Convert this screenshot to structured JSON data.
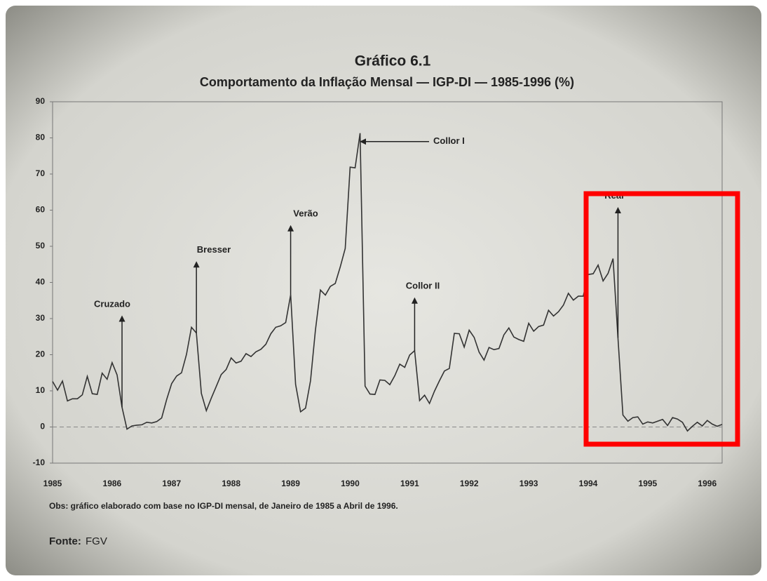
{
  "chart_data": {
    "type": "line",
    "title": "Gráfico 6.1",
    "subtitle": "Comportamento da Inflação Mensal — IGP-DI — 1985-1996 (%)",
    "note": "Obs: gráfico elaborado com base no IGP-DI mensal, de Janeiro de 1985 a Abril de 1996.",
    "source_label": "Fonte:",
    "source": "FGV",
    "annotations": [
      "Cruzado",
      "Bresser",
      "Verão",
      "Collor I",
      "Collor II",
      "Real"
    ],
    "categories": [
      "1985",
      null,
      null,
      null,
      null,
      null,
      null,
      null,
      null,
      null,
      null,
      null,
      "1986",
      null,
      null,
      null,
      null,
      null,
      null,
      null,
      null,
      null,
      null,
      null,
      "1987",
      null,
      null,
      null,
      null,
      null,
      null,
      null,
      null,
      null,
      null,
      null,
      "1988",
      null,
      null,
      null,
      null,
      null,
      null,
      null,
      null,
      null,
      null,
      null,
      "1989",
      null,
      null,
      null,
      null,
      null,
      null,
      null,
      null,
      null,
      null,
      null,
      "1990",
      null,
      null,
      null,
      null,
      null,
      null,
      null,
      null,
      null,
      null,
      null,
      "1991",
      null,
      null,
      null,
      null,
      null,
      null,
      null,
      null,
      null,
      null,
      null,
      "1992",
      null,
      null,
      null,
      null,
      null,
      null,
      null,
      null,
      null,
      null,
      null,
      "1993",
      null,
      null,
      null,
      null,
      null,
      null,
      null,
      null,
      null,
      null,
      null,
      "1994",
      null,
      null,
      null,
      null,
      null,
      null,
      null,
      null,
      null,
      null,
      null,
      "1995",
      null,
      null,
      null,
      null,
      null,
      null,
      null,
      null,
      null,
      null,
      null,
      "1996",
      null,
      null,
      null
    ],
    "values": [
      12.6,
      10.2,
      12.7,
      7.2,
      7.8,
      7.8,
      8.9,
      14.0,
      9.2,
      9.0,
      14.9,
      13.2,
      17.8,
      14.4,
      5.5,
      -0.6,
      0.3,
      0.5,
      0.6,
      1.3,
      1.1,
      1.5,
      2.5,
      7.6,
      12.0,
      14.1,
      15.0,
      20.1,
      27.6,
      26.0,
      9.3,
      4.5,
      8.0,
      11.2,
      14.5,
      15.9,
      19.1,
      17.7,
      18.2,
      20.3,
      19.5,
      20.8,
      21.5,
      22.9,
      25.8,
      27.6,
      28.0,
      28.9,
      36.6,
      11.8,
      4.2,
      5.2,
      12.8,
      26.8,
      37.9,
      36.5,
      38.9,
      39.7,
      44.3,
      49.4,
      71.9,
      71.7,
      81.3,
      11.3,
      9.1,
      9.0,
      13.0,
      12.9,
      11.7,
      14.2,
      17.4,
      16.5,
      19.9,
      21.1,
      7.3,
      8.8,
      6.5,
      9.9,
      12.8,
      15.5,
      16.2,
      25.9,
      25.8,
      22.1,
      26.8,
      24.8,
      20.7,
      18.5,
      22.0,
      21.4,
      21.7,
      25.5,
      27.4,
      24.9,
      24.2,
      23.7,
      28.7,
      26.5,
      27.8,
      28.2,
      32.3,
      30.7,
      31.9,
      33.7,
      37.0,
      35.1,
      36.2,
      36.2,
      42.2,
      42.4,
      44.8,
      40.4,
      42.5,
      46.6,
      24.7,
      3.3,
      1.6,
      2.6,
      2.8,
      0.8,
      1.4,
      1.1,
      1.6,
      2.1,
      0.4,
      2.6,
      2.2,
      1.3,
      -1.1,
      0.2,
      1.3,
      0.3,
      1.8,
      0.8,
      0.2,
      0.7
    ],
    "color": "#333333",
    "ylim": [
      -10,
      90
    ],
    "yticks": [
      -10,
      0,
      10,
      20,
      30,
      40,
      50,
      60,
      70,
      80,
      90
    ]
  }
}
